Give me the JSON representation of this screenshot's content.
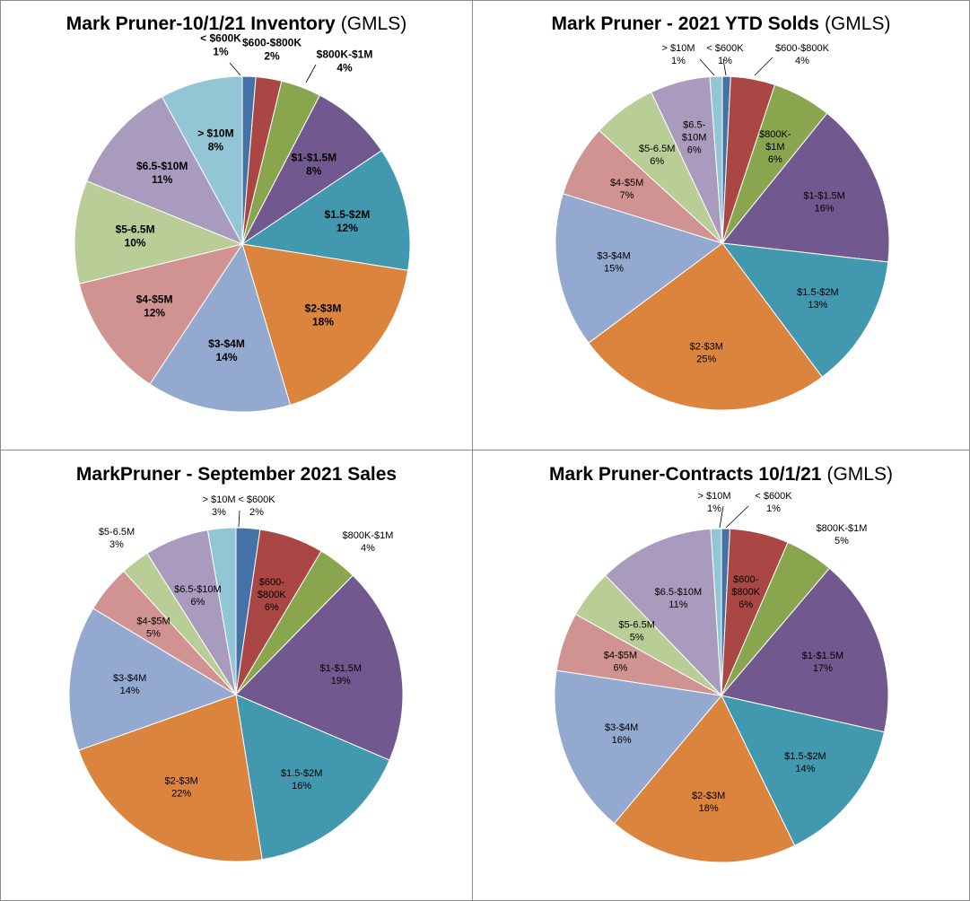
{
  "chart_data": [
    {
      "type": "pie",
      "title": "Mark Pruner-10/1/21 Inventory",
      "title_suffix": "(GMLS)",
      "bold_labels": true,
      "categories": [
        "< $600K",
        "$600-$800K",
        "$800K-$1M",
        "$1-$1.5M",
        "$1.5-$2M",
        "$2-$3M",
        "$3-$4M",
        "$4-$5M",
        "$5-6.5M",
        "$6.5-$10M",
        "> $10M"
      ],
      "values": [
        1.3,
        2.5,
        3.9,
        8,
        12,
        18,
        14,
        12,
        10,
        11,
        8
      ],
      "percent_labels": [
        "1%",
        "2%",
        "4%",
        "8%",
        "12%",
        "18%",
        "14%",
        "12%",
        "10%",
        "11%",
        "8%"
      ]
    },
    {
      "type": "pie",
      "title": "Mark Pruner - 2021 YTD Solds",
      "title_suffix": "(GMLS)",
      "bold_labels": false,
      "categories": [
        "< $600K",
        "$600-$800K",
        "$800K-\n$1M",
        "$1-$1.5M",
        "$1.5-$2M",
        "$2-$3M",
        "$3-$4M",
        "$4-$5M",
        "$5-6.5M",
        "$6.5-\n$10M",
        "> $10M"
      ],
      "values": [
        0.8,
        4.3,
        5.7,
        16,
        13,
        25,
        15,
        7,
        6.2,
        5.8,
        1.2
      ],
      "percent_labels": [
        "1%",
        "4%",
        "6%",
        "16%",
        "13%",
        "25%",
        "15%",
        "7%",
        "6%",
        "6%",
        "1%"
      ]
    },
    {
      "type": "pie",
      "title": "MarkPruner -  September 2021 Sales",
      "title_suffix": "",
      "bold_labels": false,
      "categories": [
        "< $600K",
        "$600-\n$800K",
        "$800K-$1M",
        "$1-$1.5M",
        "$1.5-$2M",
        "$2-$3M",
        "$3-$4M",
        "$4-$5M",
        "$5-6.5M",
        "$6.5-$10M",
        "> $10M"
      ],
      "values": [
        2.3,
        6.2,
        3.8,
        19,
        16,
        22,
        14,
        4.6,
        2.8,
        6.2,
        2.7
      ],
      "percent_labels": [
        "2%",
        "6%",
        "4%",
        "19%",
        "16%",
        "22%",
        "14%",
        "5%",
        "3%",
        "6%",
        "3%"
      ]
    },
    {
      "type": "pie",
      "title": "Mark Pruner-Contracts 10/1/21",
      "title_suffix": "(GMLS)",
      "bold_labels": false,
      "categories": [
        "< $600K",
        "$600-\n$800K",
        "$800K-$1M",
        "$1-$1.5M",
        "$1.5-$2M",
        "$2-$3M",
        "$3-$4M",
        "$4-$5M",
        "$5-6.5M",
        "$6.5-$10M",
        "> $10M"
      ],
      "values": [
        0.8,
        5.6,
        4.6,
        17,
        14,
        18,
        16,
        5.6,
        4.6,
        11,
        1
      ],
      "percent_labels": [
        "1%",
        "6%",
        "5%",
        "17%",
        "14%",
        "18%",
        "16%",
        "6%",
        "5%",
        "11%",
        "1%"
      ]
    }
  ],
  "colors": [
    "#4572a7",
    "#aa4643",
    "#89a54e",
    "#71588f",
    "#4198af",
    "#db843d",
    "#93a9cf",
    "#d19392",
    "#b9cd96",
    "#a99bbd",
    "#93c6d4"
  ]
}
